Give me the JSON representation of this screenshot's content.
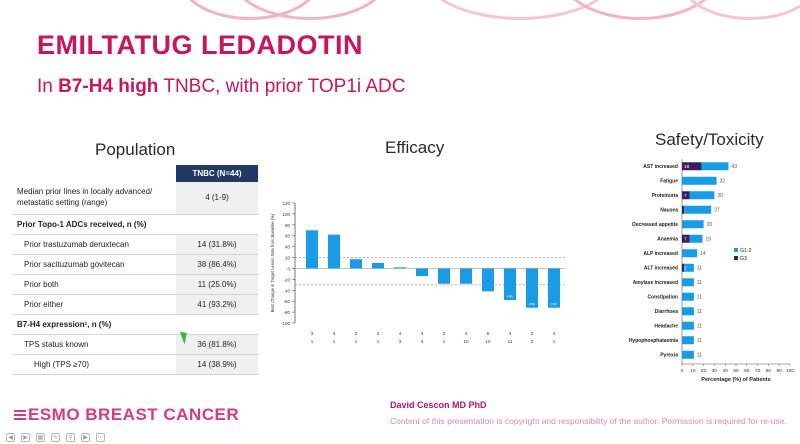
{
  "slide": {
    "title": "EMILTATUG LEDADOTIN",
    "subtitle_prefix": "In ",
    "subtitle_bold": "B7-H4 high",
    "subtitle_suffix": " TNBC, with prior TOP1i ADC",
    "population_title": "Population",
    "efficacy_title": "Efficacy",
    "safety_title": "Safety/Toxicity",
    "presenter": "David Cescon MD PhD",
    "copyright": "Content of this presentation is copyright and responsibility of the author. Permission is required for re-use.",
    "footer_logo": "ESMO BREAST CANCER"
  },
  "population": {
    "header": "TNBC (N=44)",
    "rows": [
      {
        "label": "Median prior lines in locally advanced/ metastatic setting (range)",
        "value": "4 (1-9)",
        "kind": "plain"
      },
      {
        "label": "Prior Topo-1 ADCs received, n (%)",
        "value": "",
        "kind": "group"
      },
      {
        "label": "Prior trastuzumab deruxtecan",
        "value": "14 (31.8%)",
        "kind": "sub"
      },
      {
        "label": "Prior sacituzumab govitecan",
        "value": "38 (86.4%)",
        "kind": "sub"
      },
      {
        "label": "Prior both",
        "value": "11 (25.0%)",
        "kind": "sub"
      },
      {
        "label": "Prior either",
        "value": "41 (93.2%)",
        "kind": "sub"
      },
      {
        "label": "B7-H4 expression¹, n (%)",
        "value": "",
        "kind": "group"
      },
      {
        "label": "TPS status known",
        "value": "36 (81.8%)",
        "kind": "sub"
      },
      {
        "label": "High (TPS ≥70)",
        "value": "14 (38.9%)",
        "kind": "subsub"
      }
    ]
  },
  "chart_data": [
    {
      "type": "bar",
      "title": "Efficacy",
      "ylabel": "Best Change in Target Lesion Size from Baseline (%)",
      "ylim": [
        -100,
        120
      ],
      "yticks": [
        120,
        100,
        80,
        60,
        40,
        20,
        0,
        -20,
        -40,
        -60,
        -80,
        -100
      ],
      "reference_lines": [
        20,
        -30
      ],
      "values": [
        70,
        62,
        17,
        10,
        2,
        -14,
        -28,
        -28,
        -42,
        -58,
        -72,
        -72
      ],
      "bar_labels": [
        "",
        "",
        "",
        "",
        "",
        "",
        "",
        "",
        "",
        "PR",
        "PR",
        "PR"
      ],
      "row1": [
        "3",
        "3",
        "3",
        "3",
        "4",
        "4",
        "3",
        "4",
        "5",
        "4",
        "3",
        "4"
      ],
      "row2": [
        "1",
        "1",
        "1",
        "1",
        "3",
        "3",
        "1",
        "10",
        "10",
        "11",
        "3",
        "1"
      ],
      "colors": {
        "bar": "#1a9be6",
        "ref_top": "#8a8a8a",
        "ref_bottom": "#e05a8a"
      }
    },
    {
      "type": "bar",
      "orientation": "horizontal",
      "title": "Safety/Toxicity",
      "xlabel": "Percentage (%) of Patients",
      "xlim": [
        0,
        100
      ],
      "xticks": [
        0,
        10,
        20,
        30,
        40,
        50,
        60,
        70,
        80,
        90,
        100
      ],
      "categories": [
        "AST increased",
        "Fatigue",
        "Proteinuria",
        "Nausea",
        "Decreased appetite",
        "Anaemia",
        "ALP increased",
        "ALT increased",
        "Amylase increased",
        "Constipation",
        "Diarrhoea",
        "Headache",
        "Hypophosphataemia",
        "Pyrexia"
      ],
      "series": [
        {
          "name": "G3",
          "values": [
            18,
            0,
            7,
            2,
            0,
            7,
            0,
            2,
            0,
            0,
            0,
            0,
            0,
            0
          ]
        },
        {
          "name": "G1-2",
          "values": [
            25,
            32,
            23,
            25,
            20,
            12,
            14,
            9,
            11,
            11,
            11,
            11,
            11,
            11
          ]
        }
      ],
      "totals": [
        43,
        32,
        30,
        27,
        20,
        19,
        14,
        11,
        11,
        11,
        11,
        11,
        11,
        11
      ],
      "g3_labels": [
        "18",
        "",
        "7",
        "",
        "",
        "7",
        "",
        "2",
        "",
        "",
        "",
        "",
        "",
        ""
      ],
      "legend": [
        "G1-2",
        "G3"
      ],
      "colors": {
        "G1-2": "#1a9be6",
        "G3": "#3b1f5e"
      }
    }
  ],
  "toolbar": {
    "icons": [
      "back-icon",
      "forward-icon",
      "grid-icon",
      "edit-icon",
      "search-icon",
      "video-icon",
      "more-icon"
    ]
  }
}
